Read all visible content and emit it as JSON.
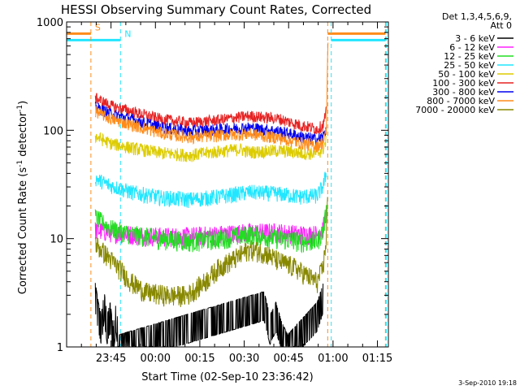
{
  "chart_data": {
    "type": "line",
    "title": "HESSI Observing Summary Count Rates, Corrected",
    "xlabel": "Start Time (02-Sep-10 23:36:42)",
    "ylabel_parts": [
      "Corrected Count Rate (s",
      "-1",
      " detector",
      "-1",
      ")"
    ],
    "yscale": "log",
    "ylim": [
      1,
      1000
    ],
    "xlim_minutes": [
      -6.7,
      102
    ],
    "xticks": [
      {
        "t": 8.3,
        "label": "23:45"
      },
      {
        "t": 23.3,
        "label": "00:00"
      },
      {
        "t": 38.3,
        "label": "00:15"
      },
      {
        "t": 53.3,
        "label": "00:30"
      },
      {
        "t": 68.3,
        "label": "00:45"
      },
      {
        "t": 83.3,
        "label": "01:00"
      },
      {
        "t": 98.3,
        "label": "01:15"
      }
    ],
    "yticks": [
      {
        "v": 1,
        "label": "1"
      },
      {
        "v": 10,
        "label": "10"
      },
      {
        "v": 100,
        "label": "100"
      },
      {
        "v": 1000,
        "label": "1000"
      }
    ],
    "legend": {
      "placement": "outside-right",
      "title_lines": [
        "Det 1,3,4,5,6,9,",
        "Att 0"
      ]
    },
    "flags": [
      {
        "label": "S",
        "color": "#ff8c1a",
        "level": 780,
        "start_min": -6.7,
        "flag_end_min": 1.5,
        "resume_min": 81.5,
        "end_min": 101
      },
      {
        "label": "N",
        "color": "#22e6ff",
        "level": 680,
        "start_min": -6.7,
        "flag_end_min": 11.5,
        "resume_min": 82.7,
        "end_min": 101
      }
    ],
    "markers": [
      {
        "t": 1.5,
        "color": "#ff8c1a"
      },
      {
        "t": 11.5,
        "color": "#22e6ff"
      },
      {
        "t": 81.5,
        "color": "#ff8c1a"
      },
      {
        "t": 82.7,
        "color": "#22e6ff"
      },
      {
        "t": 101,
        "color": "#ff8c1a"
      },
      {
        "t": 101.3,
        "color": "#22e6ff"
      }
    ],
    "series_start_min": 3,
    "series_end_min": 81,
    "series": [
      {
        "name": "3 - 6 keV",
        "color": "#000000",
        "points": [
          [
            3.0,
            3.0
          ],
          [
            4.0,
            2.0
          ],
          [
            5.0,
            1.5
          ],
          [
            6.0,
            2.5
          ],
          [
            7.0,
            1.5
          ],
          [
            8.0,
            2.0
          ],
          [
            9.0,
            1.2
          ],
          [
            10.0,
            2.0
          ],
          [
            11.0,
            1.0
          ],
          [
            60.0,
            2.5
          ],
          [
            62.0,
            1.5
          ],
          [
            64.0,
            2.0
          ],
          [
            66.0,
            1.3
          ],
          [
            68.0,
            1.0
          ],
          [
            78.0,
            2.0
          ],
          [
            80.0,
            3.0
          ]
        ]
      },
      {
        "name": "6 - 12 keV",
        "color": "#ff22ff",
        "points": [
          [
            3,
            12
          ],
          [
            8,
            11.5
          ],
          [
            15,
            11
          ],
          [
            25,
            10.5
          ],
          [
            35,
            10.5
          ],
          [
            45,
            11
          ],
          [
            55,
            11.5
          ],
          [
            65,
            11.5
          ],
          [
            72,
            11
          ],
          [
            78,
            11
          ],
          [
            80,
            12.5
          ],
          [
            81,
            18
          ]
        ]
      },
      {
        "name": "12 - 25 keV",
        "color": "#22dd22",
        "points": [
          [
            3,
            16
          ],
          [
            8,
            12.5
          ],
          [
            15,
            11
          ],
          [
            25,
            10
          ],
          [
            35,
            9.5
          ],
          [
            45,
            10
          ],
          [
            55,
            11
          ],
          [
            65,
            10
          ],
          [
            72,
            9.5
          ],
          [
            78,
            9.5
          ],
          [
            80,
            12
          ],
          [
            81,
            18
          ]
        ]
      },
      {
        "name": "25 - 50 keV",
        "color": "#22e6ff",
        "points": [
          [
            3,
            36
          ],
          [
            8,
            31
          ],
          [
            15,
            27
          ],
          [
            25,
            24
          ],
          [
            35,
            23
          ],
          [
            45,
            24.5
          ],
          [
            55,
            27
          ],
          [
            65,
            26
          ],
          [
            72,
            24.5
          ],
          [
            78,
            25
          ],
          [
            80,
            31
          ],
          [
            81,
            40
          ]
        ]
      },
      {
        "name": "50 - 100 keV",
        "color": "#ddcc00",
        "points": [
          [
            3,
            88
          ],
          [
            8,
            76
          ],
          [
            15,
            69
          ],
          [
            25,
            62
          ],
          [
            35,
            59
          ],
          [
            45,
            64
          ],
          [
            52,
            67
          ],
          [
            55,
            63
          ],
          [
            60,
            64
          ],
          [
            65,
            65
          ],
          [
            72,
            62
          ],
          [
            78,
            61
          ],
          [
            80,
            68
          ],
          [
            81,
            80
          ]
        ]
      },
      {
        "name": "100 - 300 keV",
        "color": "#e62222",
        "points": [
          [
            3,
            200
          ],
          [
            8,
            170
          ],
          [
            15,
            150
          ],
          [
            25,
            127
          ],
          [
            35,
            117
          ],
          [
            45,
            125
          ],
          [
            55,
            136
          ],
          [
            65,
            128
          ],
          [
            72,
            112
          ],
          [
            78,
            103
          ],
          [
            80,
            112
          ],
          [
            81,
            150
          ]
        ]
      },
      {
        "name": "300 - 800 keV",
        "color": "#0000ee",
        "points": [
          [
            3,
            165
          ],
          [
            8,
            143
          ],
          [
            15,
            127
          ],
          [
            25,
            107
          ],
          [
            35,
            98
          ],
          [
            45,
            102
          ],
          [
            55,
            106
          ],
          [
            65,
            98
          ],
          [
            72,
            88
          ],
          [
            78,
            82
          ],
          [
            80,
            88
          ],
          [
            81,
            105
          ]
        ]
      },
      {
        "name": "800 - 7000 keV",
        "color": "#ff8c1a",
        "points": [
          [
            3,
            150
          ],
          [
            8,
            128
          ],
          [
            15,
            113
          ],
          [
            25,
            95
          ],
          [
            35,
            86
          ],
          [
            45,
            90
          ],
          [
            55,
            93
          ],
          [
            65,
            85
          ],
          [
            72,
            77
          ],
          [
            78,
            72
          ],
          [
            80,
            78
          ],
          [
            81,
            95
          ],
          [
            81.3,
            250
          ],
          [
            81.7,
            1000
          ]
        ]
      },
      {
        "name": "7000 - 20000 keV",
        "color": "#888800",
        "points": [
          [
            3,
            9
          ],
          [
            8,
            6.5
          ],
          [
            12,
            5
          ],
          [
            15,
            4
          ],
          [
            20,
            3.2
          ],
          [
            28,
            3.0
          ],
          [
            34,
            3.0
          ],
          [
            40,
            4.0
          ],
          [
            45,
            5.5
          ],
          [
            50,
            6.5
          ],
          [
            55,
            8.0
          ],
          [
            60,
            7.5
          ],
          [
            65,
            6.2
          ],
          [
            70,
            5.5
          ],
          [
            75,
            4.5
          ],
          [
            78,
            4.0
          ],
          [
            80,
            5.5
          ],
          [
            81,
            10
          ],
          [
            81.5,
            25
          ]
        ]
      }
    ]
  },
  "footer": {
    "date": "3-Sep-2010 19:18"
  }
}
